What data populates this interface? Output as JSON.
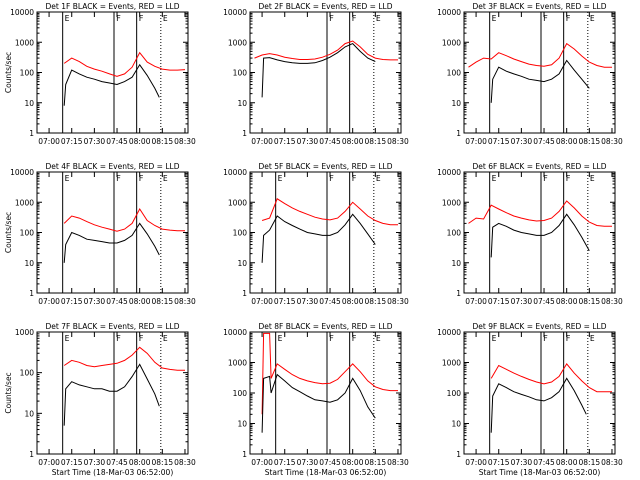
{
  "chart_data": [
    {
      "type": "line",
      "title": "Det 1F BLACK = Events, RED = LLD",
      "xlabel": "",
      "ylabel": "Counts/sec",
      "yscale": "log",
      "ylim": [
        1,
        10000
      ],
      "x_ticks": [
        "07:00",
        "07:15",
        "07:30",
        "07:45",
        "08:00",
        "08:15",
        "08:30"
      ],
      "y_ticks": [
        "1",
        "10",
        "100",
        "1000",
        "10000"
      ],
      "flags": [
        "E",
        "F",
        "F",
        "E"
      ],
      "series": [
        {
          "color": "#ff0000",
          "x": [
            "07:10",
            "07:15",
            "07:20",
            "07:25",
            "07:30",
            "07:35",
            "07:40",
            "07:45",
            "07:50",
            "07:55",
            "08:00",
            "08:05",
            "08:10",
            "08:15",
            "08:20",
            "08:25",
            "08:30"
          ],
          "y": [
            200,
            300,
            230,
            160,
            130,
            110,
            90,
            75,
            90,
            150,
            450,
            220,
            160,
            130,
            120,
            120,
            125
          ]
        },
        {
          "color": "#000000",
          "x": [
            "07:10",
            "07:11",
            "07:15",
            "07:20",
            "07:25",
            "07:30",
            "07:35",
            "07:40",
            "07:45",
            "07:50",
            "07:55",
            "08:00",
            "08:05",
            "08:10",
            "08:13"
          ],
          "y": [
            8,
            40,
            120,
            90,
            70,
            60,
            50,
            45,
            40,
            50,
            70,
            180,
            80,
            30,
            15
          ]
        }
      ]
    },
    {
      "type": "line",
      "title": "Det 2F BLACK = Events, RED = LLD",
      "xlabel": "",
      "ylabel": "",
      "yscale": "log",
      "ylim": [
        1,
        10000
      ],
      "x_ticks": [
        "07:00",
        "07:15",
        "07:30",
        "07:45",
        "08:00",
        "08:15",
        "08:30"
      ],
      "y_ticks": [
        "1",
        "10",
        "100",
        "1000",
        "10000"
      ],
      "flags": [
        "F",
        "F",
        "E"
      ],
      "series": [
        {
          "color": "#ff0000",
          "x": [
            "06:55",
            "07:00",
            "07:05",
            "07:10",
            "07:15",
            "07:20",
            "07:25",
            "07:30",
            "07:35",
            "07:40",
            "07:45",
            "07:50",
            "07:55",
            "08:00",
            "08:05",
            "08:10",
            "08:15",
            "08:20",
            "08:25",
            "08:30"
          ],
          "y": [
            300,
            380,
            420,
            380,
            320,
            290,
            270,
            270,
            280,
            320,
            400,
            550,
            900,
            1100,
            700,
            400,
            300,
            270,
            260,
            260
          ]
        },
        {
          "color": "#000000",
          "x": [
            "07:00",
            "07:01",
            "07:05",
            "07:10",
            "07:15",
            "07:20",
            "07:25",
            "07:30",
            "07:35",
            "07:40",
            "07:45",
            "07:50",
            "07:55",
            "08:00",
            "08:05",
            "08:10",
            "08:15"
          ],
          "y": [
            15,
            300,
            310,
            260,
            230,
            210,
            200,
            200,
            210,
            250,
            320,
            450,
            700,
            900,
            500,
            300,
            230
          ]
        }
      ]
    },
    {
      "type": "line",
      "title": "Det 3F BLACK = Events, RED = LLD",
      "xlabel": "",
      "ylabel": "",
      "yscale": "log",
      "ylim": [
        1,
        10000
      ],
      "x_ticks": [
        "07:00",
        "07:15",
        "07:30",
        "07:45",
        "08:00",
        "08:15",
        "08:30"
      ],
      "y_ticks": [
        "1",
        "10",
        "100",
        "1000",
        "10000"
      ],
      "flags": [
        "E",
        "F",
        "F",
        "E"
      ],
      "series": [
        {
          "color": "#ff0000",
          "x": [
            "06:55",
            "07:00",
            "07:05",
            "07:10",
            "07:15",
            "07:20",
            "07:25",
            "07:30",
            "07:35",
            "07:40",
            "07:45",
            "07:50",
            "07:55",
            "08:00",
            "08:05",
            "08:10",
            "08:15",
            "08:20",
            "08:25",
            "08:30"
          ],
          "y": [
            150,
            220,
            300,
            280,
            450,
            360,
            280,
            230,
            190,
            170,
            160,
            180,
            300,
            900,
            600,
            350,
            220,
            170,
            150,
            150
          ]
        },
        {
          "color": "#000000",
          "x": [
            "07:10",
            "07:11",
            "07:15",
            "07:20",
            "07:25",
            "07:30",
            "07:35",
            "07:40",
            "07:45",
            "07:50",
            "07:55",
            "08:00",
            "08:05",
            "08:10",
            "08:15"
          ],
          "y": [
            10,
            60,
            150,
            110,
            90,
            75,
            60,
            55,
            50,
            60,
            90,
            250,
            120,
            60,
            30
          ]
        }
      ]
    },
    {
      "type": "line",
      "title": "Det 4F BLACK = Events, RED = LLD",
      "xlabel": "",
      "ylabel": "Counts/sec",
      "yscale": "log",
      "ylim": [
        1,
        10000
      ],
      "x_ticks": [
        "07:00",
        "07:15",
        "07:30",
        "07:45",
        "08:00",
        "08:15",
        "08:30"
      ],
      "y_ticks": [
        "1",
        "10",
        "100",
        "1000",
        "10000"
      ],
      "flags": [
        "E",
        "F",
        "F",
        "E"
      ],
      "series": [
        {
          "color": "#ff0000",
          "x": [
            "07:10",
            "07:15",
            "07:20",
            "07:25",
            "07:30",
            "07:35",
            "07:40",
            "07:45",
            "07:50",
            "07:55",
            "08:00",
            "08:05",
            "08:10",
            "08:15",
            "08:20",
            "08:25",
            "08:30"
          ],
          "y": [
            200,
            350,
            300,
            230,
            180,
            150,
            130,
            110,
            130,
            200,
            600,
            250,
            170,
            130,
            120,
            115,
            115
          ]
        },
        {
          "color": "#000000",
          "x": [
            "07:10",
            "07:11",
            "07:15",
            "07:20",
            "07:25",
            "07:30",
            "07:35",
            "07:40",
            "07:45",
            "07:50",
            "07:55",
            "08:00",
            "08:05",
            "08:10",
            "08:13"
          ],
          "y": [
            10,
            40,
            100,
            80,
            60,
            55,
            50,
            45,
            45,
            55,
            80,
            200,
            90,
            35,
            18
          ]
        }
      ]
    },
    {
      "type": "line",
      "title": "Det 5F BLACK = Events, RED = LLD",
      "xlabel": "",
      "ylabel": "",
      "yscale": "log",
      "ylim": [
        1,
        10000
      ],
      "x_ticks": [
        "07:00",
        "07:15",
        "07:30",
        "07:45",
        "08:00",
        "08:15",
        "08:30"
      ],
      "y_ticks": [
        "1",
        "10",
        "100",
        "1000",
        "10000"
      ],
      "flags": [
        "E",
        "F",
        "F",
        "E"
      ],
      "series": [
        {
          "color": "#ff0000",
          "x": [
            "07:00",
            "07:05",
            "07:10",
            "07:15",
            "07:20",
            "07:25",
            "07:30",
            "07:35",
            "07:40",
            "07:45",
            "07:50",
            "07:55",
            "08:00",
            "08:05",
            "08:10",
            "08:15",
            "08:20",
            "08:25",
            "08:30"
          ],
          "y": [
            250,
            300,
            1300,
            900,
            650,
            500,
            400,
            320,
            280,
            260,
            300,
            500,
            1000,
            600,
            350,
            250,
            200,
            180,
            180
          ]
        },
        {
          "color": "#000000",
          "x": [
            "07:00",
            "07:01",
            "07:05",
            "07:10",
            "07:15",
            "07:20",
            "07:25",
            "07:30",
            "07:35",
            "07:40",
            "07:45",
            "07:50",
            "07:55",
            "08:00",
            "08:05",
            "08:10",
            "08:15"
          ],
          "y": [
            10,
            80,
            120,
            350,
            230,
            170,
            130,
            100,
            90,
            80,
            80,
            100,
            180,
            400,
            200,
            90,
            40
          ]
        }
      ]
    },
    {
      "type": "line",
      "title": "Det 6F BLACK = Events, RED = LLD",
      "xlabel": "",
      "ylabel": "",
      "yscale": "log",
      "ylim": [
        1,
        10000
      ],
      "x_ticks": [
        "07:00",
        "07:15",
        "07:30",
        "07:45",
        "08:00",
        "08:15",
        "08:30"
      ],
      "y_ticks": [
        "1",
        "10",
        "100",
        "1000",
        "10000"
      ],
      "flags": [
        "E",
        "F",
        "F",
        "E"
      ],
      "series": [
        {
          "color": "#ff0000",
          "x": [
            "06:55",
            "07:00",
            "07:05",
            "07:10",
            "07:15",
            "07:20",
            "07:25",
            "07:30",
            "07:35",
            "07:40",
            "07:45",
            "07:50",
            "07:55",
            "08:00",
            "08:05",
            "08:10",
            "08:15",
            "08:20",
            "08:25",
            "08:30"
          ],
          "y": [
            200,
            300,
            280,
            800,
            600,
            450,
            350,
            300,
            260,
            240,
            250,
            300,
            500,
            1100,
            650,
            350,
            220,
            170,
            160,
            160
          ]
        },
        {
          "color": "#000000",
          "x": [
            "07:10",
            "07:11",
            "07:15",
            "07:20",
            "07:25",
            "07:30",
            "07:35",
            "07:40",
            "07:45",
            "07:50",
            "07:55",
            "08:00",
            "08:05",
            "08:10",
            "08:15"
          ],
          "y": [
            15,
            150,
            200,
            160,
            120,
            100,
            90,
            80,
            80,
            100,
            170,
            400,
            180,
            70,
            25
          ]
        }
      ]
    },
    {
      "type": "line",
      "title": "Det 7F BLACK = Events, RED = LLD",
      "xlabel": "Start Time (18-Mar-03 06:52:00)",
      "ylabel": "Counts/sec",
      "yscale": "log",
      "ylim": [
        1,
        1000
      ],
      "x_ticks": [
        "07:00",
        "07:15",
        "07:30",
        "07:45",
        "08:00",
        "08:15",
        "08:30"
      ],
      "y_ticks": [
        "1",
        "10",
        "100",
        "1000"
      ],
      "flags": [
        "E",
        "F",
        "F",
        "E"
      ],
      "series": [
        {
          "color": "#ff0000",
          "x": [
            "07:10",
            "07:15",
            "07:20",
            "07:25",
            "07:30",
            "07:35",
            "07:40",
            "07:45",
            "07:50",
            "07:55",
            "08:00",
            "08:05",
            "08:10",
            "08:15",
            "08:20",
            "08:25",
            "08:30"
          ],
          "y": [
            150,
            200,
            180,
            150,
            140,
            150,
            160,
            170,
            200,
            270,
            420,
            300,
            180,
            130,
            120,
            115,
            115
          ]
        },
        {
          "color": "#000000",
          "x": [
            "07:10",
            "07:11",
            "07:15",
            "07:20",
            "07:25",
            "07:30",
            "07:35",
            "07:40",
            "07:45",
            "07:50",
            "07:55",
            "08:00",
            "08:05",
            "08:10",
            "08:13"
          ],
          "y": [
            5,
            40,
            60,
            50,
            45,
            40,
            40,
            35,
            35,
            45,
            80,
            160,
            70,
            30,
            15
          ]
        }
      ]
    },
    {
      "type": "line",
      "title": "Det 8F BLACK = Events, RED = LLD",
      "xlabel": "Start Time (18-Mar-03 06:52:00)",
      "ylabel": "",
      "yscale": "log",
      "ylim": [
        1,
        10000
      ],
      "x_ticks": [
        "07:00",
        "07:15",
        "07:30",
        "07:45",
        "08:00",
        "08:15",
        "08:30"
      ],
      "y_ticks": [
        "1",
        "10",
        "100",
        "1000",
        "10000"
      ],
      "flags": [
        "E",
        "F",
        "F",
        "E"
      ],
      "series": [
        {
          "color": "#ff0000",
          "x": [
            "07:00",
            "07:01",
            "07:05",
            "07:06",
            "07:10",
            "07:15",
            "07:20",
            "07:25",
            "07:30",
            "07:35",
            "07:40",
            "07:45",
            "07:50",
            "07:55",
            "08:00",
            "08:05",
            "08:10",
            "08:15",
            "08:20",
            "08:25",
            "08:30"
          ],
          "y": [
            20,
            9000,
            9000,
            300,
            900,
            600,
            400,
            300,
            250,
            220,
            200,
            210,
            280,
            500,
            900,
            500,
            250,
            160,
            130,
            120,
            120
          ]
        },
        {
          "color": "#000000",
          "x": [
            "07:00",
            "07:01",
            "07:05",
            "07:06",
            "07:10",
            "07:15",
            "07:20",
            "07:25",
            "07:30",
            "07:35",
            "07:40",
            "07:45",
            "07:50",
            "07:55",
            "08:00",
            "08:05",
            "08:10",
            "08:15"
          ],
          "y": [
            5,
            300,
            350,
            100,
            400,
            250,
            150,
            110,
            80,
            60,
            55,
            50,
            60,
            100,
            300,
            120,
            35,
            15
          ]
        }
      ]
    },
    {
      "type": "line",
      "title": "Det 9F BLACK = Events, RED = LLD",
      "xlabel": "Start Time (18-Mar-03 06:52:00)",
      "ylabel": "",
      "yscale": "log",
      "ylim": [
        1,
        10000
      ],
      "x_ticks": [
        "07:00",
        "07:15",
        "07:30",
        "07:45",
        "08:00",
        "08:15",
        "08:30"
      ],
      "y_ticks": [
        "1",
        "10",
        "100",
        "1000",
        "10000"
      ],
      "flags": [
        "E",
        "F",
        "F",
        "E"
      ],
      "series": [
        {
          "color": "#ff0000",
          "x": [
            "07:10",
            "07:15",
            "07:20",
            "07:25",
            "07:30",
            "07:35",
            "07:40",
            "07:45",
            "07:50",
            "07:55",
            "08:00",
            "08:05",
            "08:10",
            "08:15",
            "08:20",
            "08:25",
            "08:30"
          ],
          "y": [
            300,
            800,
            600,
            450,
            350,
            280,
            230,
            200,
            230,
            350,
            900,
            450,
            250,
            150,
            110,
            110,
            110
          ]
        },
        {
          "color": "#000000",
          "x": [
            "07:10",
            "07:11",
            "07:15",
            "07:20",
            "07:25",
            "07:30",
            "07:35",
            "07:40",
            "07:45",
            "07:50",
            "07:55",
            "08:00",
            "08:05",
            "08:10",
            "08:13"
          ],
          "y": [
            5,
            80,
            200,
            150,
            110,
            90,
            75,
            60,
            55,
            70,
            110,
            300,
            120,
            40,
            20
          ]
        }
      ]
    }
  ]
}
